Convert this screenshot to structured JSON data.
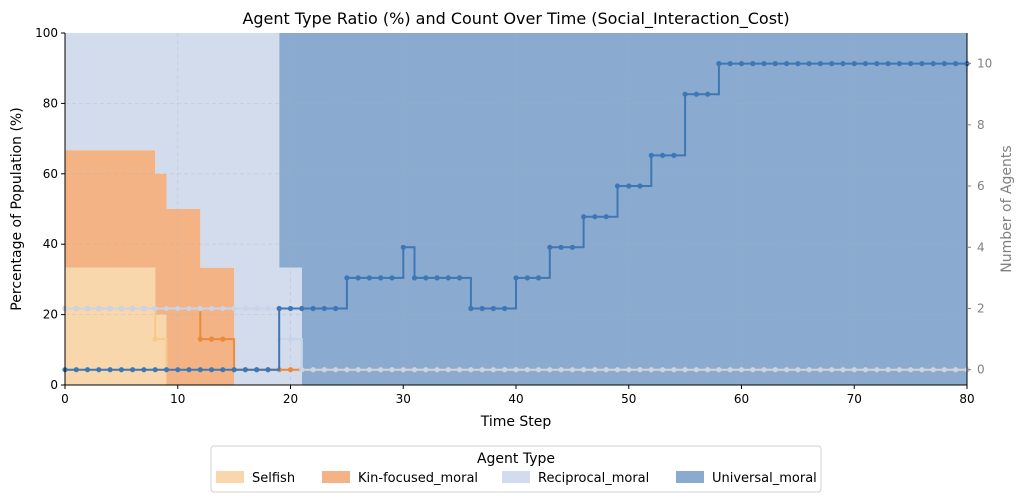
{
  "chart_data": {
    "type": "area",
    "title": "Agent Type Ratio (%) and Count Over Time (Social_Interaction_Cost)",
    "xlabel": "Time Step",
    "ylabel": "Percentage of Population (%)",
    "ylabel_right": "Number of Agents",
    "xlim": [
      0,
      80
    ],
    "ylim": [
      0,
      100
    ],
    "ylim_right": [
      -0.5,
      11
    ],
    "xticks": [
      0,
      10,
      20,
      30,
      40,
      50,
      60,
      70,
      80
    ],
    "yticks": [
      0,
      20,
      40,
      60,
      80,
      100
    ],
    "yticks_right": [
      0,
      2,
      4,
      6,
      8,
      10
    ],
    "step": "post",
    "grid": true,
    "legend": {
      "title": "Agent Type",
      "placement": "bottom-center",
      "entries": [
        "Selfish",
        "Kin-focused_moral",
        "Reciprocal_moral",
        "Universal_moral"
      ]
    },
    "colors": {
      "Selfish": "#f7d7ab",
      "Kin-focused_moral": "#f3b384",
      "Reciprocal_moral": "#d3dced",
      "Universal_moral": "#8aabcf",
      "Selfish_line": "#f9c98a",
      "Kin-focused_moral_line": "#ea8a3c",
      "Reciprocal_moral_line": "#c8d4e8",
      "Universal_moral_line": "#3d77b6"
    },
    "count_series": [
      {
        "name": "Selfish",
        "segments": [
          [
            0,
            2
          ],
          [
            8,
            1
          ],
          [
            9,
            0
          ],
          [
            80,
            0
          ]
        ]
      },
      {
        "name": "Kin-focused_moral",
        "segments": [
          [
            0,
            2
          ],
          [
            12,
            1
          ],
          [
            15,
            0
          ],
          [
            80,
            0
          ]
        ]
      },
      {
        "name": "Reciprocal_moral",
        "segments": [
          [
            0,
            2
          ],
          [
            19,
            1
          ],
          [
            21,
            0
          ],
          [
            80,
            0
          ]
        ]
      },
      {
        "name": "Universal_moral",
        "segments": [
          [
            0,
            0
          ],
          [
            19,
            2
          ],
          [
            25,
            3
          ],
          [
            30,
            4
          ],
          [
            31,
            3
          ],
          [
            36,
            2
          ],
          [
            40,
            3
          ],
          [
            43,
            4
          ],
          [
            46,
            5
          ],
          [
            49,
            6
          ],
          [
            52,
            7
          ],
          [
            55,
            9
          ],
          [
            58,
            10
          ],
          [
            80,
            10
          ]
        ]
      }
    ]
  }
}
